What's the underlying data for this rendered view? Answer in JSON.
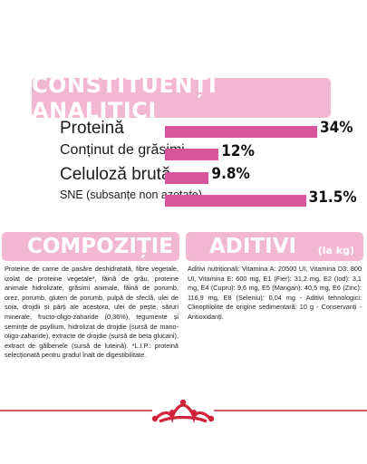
{
  "analitici": {
    "title": "CONSTITUENȚI ANALITICI",
    "rows": [
      {
        "label": "Proteină",
        "value": "34%",
        "fraction": 0.34
      },
      {
        "label": "Conținut de grăsimi",
        "value": "12%",
        "fraction": 0.12
      },
      {
        "label": "Celuloză brută",
        "value": "9.8%",
        "fraction": 0.098
      },
      {
        "label": "SNE (subsanțe non azotate)",
        "value": "31.5%",
        "fraction": 0.315
      }
    ]
  },
  "compozitie": {
    "title": "COMPOZIȚIE",
    "text": "Proteine de carne de pasăre deshidratată, fibre vegetale, izolat de proteine vegetale*, făină de grâu, proteine animale hidrolizate, grăsimi animale, făină de porumb, orez, porumb, gluten de porumb, pulpă de sfeclă, ulei de soia, drojdii și părți ale acestora, ulei de pește, săruri minerale, fructo-oligo-zaharide (0,36%), tegumente și semințe de psyllium, hidrolizat de drojdie (sursă de mano-oligo-zaharide), extracte de drojdie (sursă de beta glucani), extract de gălbenele (sursă de luteină). *L.I.P.: proteină selecționată pentru gradul înalt de digestibilitate."
  },
  "aditivi": {
    "title": "ADITIVI",
    "unit": "(la kg)",
    "text": "Aditivi nutriționali: Vitamina A: 20500 UI, Vitamina D3: 800 UI, Vitamina E: 600 mg, E1 (Fier): 31,2 mg, E2 (Iod): 3,1 mg, E4 (Cupru): 9,6 mg, E5 (Mangan): 40,5 mg, E6 (Zinc): 116,9 mg, E8 (Seleniu): 0,04 mg - Aditivi tehnologici: Clinoptilolite de origine sedimentară: 10 g - Conservanți - Antioxidanți."
  },
  "colors": {
    "card": "#f3b8d1",
    "bar": "#d9559a",
    "brand_red": "#d2233c"
  },
  "icons": {
    "brand": "crown-logo-icon"
  }
}
